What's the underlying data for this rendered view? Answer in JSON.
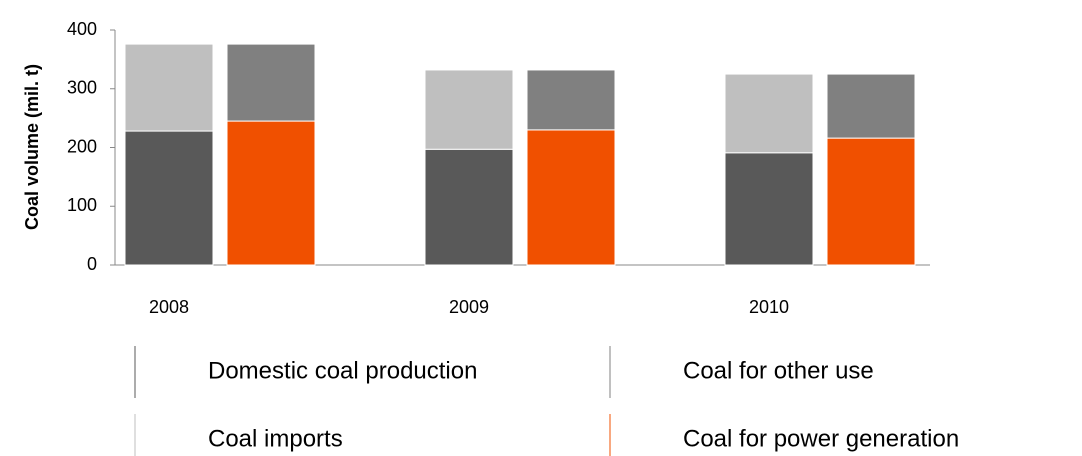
{
  "chart_data": {
    "type": "stacked_bar",
    "y_label": "Coal volume (mil. t)",
    "categories": [
      "2008",
      "2009",
      "2010"
    ],
    "series": [
      {
        "name": "Domestic coal production",
        "color": "#595959",
        "stack": 1,
        "values": [
          228,
          197,
          191
        ]
      },
      {
        "name": "Coal imports",
        "color": "#bfbfbf",
        "stack": 1,
        "values": [
          148,
          135,
          134
        ]
      },
      {
        "name": "Coal for power generation",
        "color": "#f05000",
        "stack": 2,
        "values": [
          245,
          230,
          216
        ]
      },
      {
        "name": "Coal for other use",
        "color": "#808080",
        "stack": 2,
        "values": [
          131,
          102,
          109
        ]
      }
    ],
    "ylim": [
      0,
      400
    ],
    "yticks": [
      0,
      100,
      200,
      300,
      400
    ],
    "grid": false
  }
}
